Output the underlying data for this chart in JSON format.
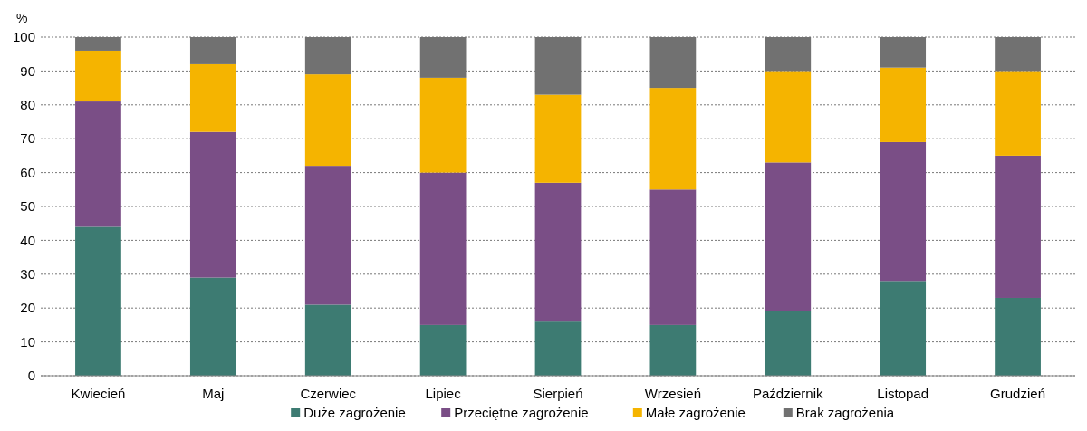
{
  "chart_data": {
    "type": "bar",
    "stacked": true,
    "ylabel": "%",
    "categories": [
      "Kwiecień",
      "Maj",
      "Czerwiec",
      "Lipiec",
      "Sierpień",
      "Wrzesień",
      "Październik",
      "Listopad",
      "Grudzień"
    ],
    "series": [
      {
        "name": "Duże zagrożenie",
        "color": "#3d7b72",
        "values": [
          44,
          29,
          21,
          15,
          16,
          15,
          19,
          28,
          23
        ]
      },
      {
        "name": "Przeciętne zagrożenie",
        "color": "#7a4e86",
        "values": [
          37,
          43,
          41,
          45,
          41,
          40,
          44,
          41,
          42
        ]
      },
      {
        "name": "Małe zagrożenie",
        "color": "#f5b400",
        "values": [
          15,
          20,
          27,
          28,
          26,
          30,
          27,
          22,
          25
        ]
      },
      {
        "name": "Brak zagrożenia",
        "color": "#717171",
        "values": [
          4,
          8,
          11,
          12,
          17,
          15,
          10,
          9,
          10
        ]
      }
    ],
    "ylim": [
      0,
      100
    ],
    "yticks": [
      0,
      10,
      20,
      30,
      40,
      50,
      60,
      70,
      80,
      90,
      100
    ],
    "grid": "y",
    "legend": "bottom"
  }
}
